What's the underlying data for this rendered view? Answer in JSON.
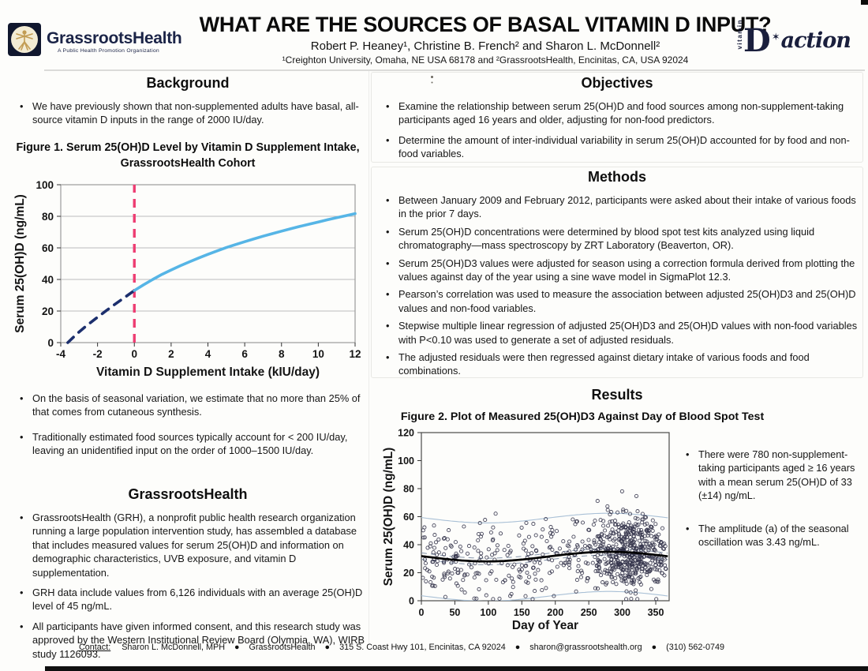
{
  "header": {
    "logo_left": {
      "name": "GrassrootsHealth",
      "tagline": "A Public Health Promotion Organization"
    },
    "title": "WHAT ARE THE SOURCES OF BASAL VITAMIN D INPUT?",
    "authors": "Robert P. Heaney¹, Christine B. French² and Sharon L. McDonnell²",
    "affiliations": "¹Creighton University, Omaha, NE USA 68178 and ²GrassrootsHealth, Encinitas, CA, USA 92024",
    "logo_right": {
      "vertical": "vitamin",
      "d": "D",
      "star": "✶",
      "rest": "action"
    }
  },
  "left_column": {
    "background": {
      "heading": "Background",
      "bullets": [
        "We have previously shown that non-supplemented adults have basal, all-source vitamin D inputs in the range of 2000 IU/day."
      ]
    },
    "post_figure_bullets": [
      "On the basis of seasonal variation, we estimate that no more than 25% of that comes from cutaneous synthesis.",
      "Traditionally estimated food sources typically account for < 200 IU/day, leaving an unidentified input on the order of 1000–1500 IU/day."
    ],
    "grassrootshealth": {
      "heading": "GrassrootsHealth",
      "bullets": [
        "GrassrootsHealth (GRH), a nonprofit public health research organization running a large population intervention study, has assembled a database that includes measured values for serum 25(OH)D and information on demographic characteristics, UVB exposure, and vitamin D supplementation.",
        "GRH data include values from 6,126 individuals with an average 25(OH)D level of 45 ng/mL.",
        "All participants have given informed consent, and this research study was approved by the Western Institutional Review Board (Olympia, WA), WIRB study 1126093."
      ]
    }
  },
  "right_column": {
    "objectives": {
      "heading": "Objectives",
      "bullets": [
        "Examine the relationship between serum 25(OH)D and food sources among non-supplement-taking participants aged 16 years and older, adjusting for non-food predictors.",
        "Determine the amount of inter-individual variability in serum 25(OH)D accounted for by food and non-food variables."
      ]
    },
    "methods": {
      "heading": "Methods",
      "bullets": [
        "Between January 2009 and February 2012, participants were asked about their intake of various foods in the prior 7 days.",
        "Serum 25(OH)D concentrations were determined by blood spot test kits analyzed using liquid chromatography—mass spectroscopy by ZRT Laboratory (Beaverton, OR).",
        "Serum 25(OH)D3 values were adjusted for season using a correction formula derived from plotting the values against day of the year using a sine wave model in SigmaPlot 12.3.",
        "Pearson’s correlation was used to measure the association between adjusted 25(OH)D3 and 25(OH)D values and non-food variables.",
        "Stepwise multiple linear regression of adjusted 25(OH)D3 and 25(OH)D values with non-food variables with P<0.10 was used to generate a set of adjusted residuals.",
        "The adjusted residuals were then regressed against dietary intake of various foods and food combinations."
      ]
    },
    "results": {
      "heading": "Results",
      "bullets": [
        "There were 780 non-supplement-taking participants aged ≥ 16 years with a mean serum 25(OH)D of 33 (±14) ng/mL.",
        "The amplitude (a) of the seasonal oscillation was 3.43 ng/mL."
      ]
    }
  },
  "footer": {
    "label": "Contact:",
    "text": "Sharon L. McDonnell, MPH    ●    GrassrootsHealth    ●    315 S. Coast Hwy 101, Encinitas, CA 92024    ●    sharon@grassrootshealth.org    ●    (310) 562-0749"
  },
  "chart_data": [
    {
      "id": "fig1",
      "type": "line",
      "title": "Figure 1. Serum 25(OH)D Level by Vitamin D Supplement Intake, GrassrootsHealth Cohort",
      "xlabel": "Vitamin D Supplement Intake  (kIU/day)",
      "ylabel": "Serum 25(OH)D (ng/mL)",
      "xlim": [
        -4,
        12
      ],
      "ylim": [
        0,
        100
      ],
      "xticks": [
        -4,
        -2,
        0,
        2,
        4,
        6,
        8,
        10,
        12
      ],
      "yticks": [
        0,
        20,
        40,
        60,
        80,
        100
      ],
      "grid": "horizontal",
      "frame_color": "#9b9b9b",
      "grid_color": "#bcbcbc",
      "series": [
        {
          "name": "extrapolated-basal-input",
          "style": "dashed",
          "color": "#1c2f6d",
          "width": 3.6,
          "points": [
            [
              -3.62,
              0
            ],
            [
              -3.1,
              5.8
            ],
            [
              -2.6,
              10.7
            ],
            [
              -2.1,
              15.2
            ],
            [
              -1.6,
              19.6
            ],
            [
              -1.1,
              23.9
            ],
            [
              -0.55,
              28.4
            ],
            [
              0,
              33
            ]
          ]
        },
        {
          "name": "observed-cohort-curve",
          "style": "solid",
          "color": "#56b5e6",
          "width": 3.6,
          "points": [
            [
              0,
              33
            ],
            [
              0.5,
              36.6
            ],
            [
              1,
              40
            ],
            [
              1.5,
              43.2
            ],
            [
              2,
              46
            ],
            [
              2.5,
              48.7
            ],
            [
              3,
              51.2
            ],
            [
              3.5,
              53.6
            ],
            [
              4,
              55.9
            ],
            [
              4.5,
              58.1
            ],
            [
              5,
              60.2
            ],
            [
              5.5,
              62.1
            ],
            [
              6,
              63.9
            ],
            [
              6.5,
              65.7
            ],
            [
              7,
              67.4
            ],
            [
              7.5,
              69
            ],
            [
              8,
              70.6
            ],
            [
              8.5,
              72.1
            ],
            [
              9,
              73.6
            ],
            [
              9.5,
              75
            ],
            [
              10,
              76.4
            ],
            [
              10.5,
              77.8
            ],
            [
              11,
              79.1
            ],
            [
              11.5,
              80.4
            ],
            [
              12,
              81.7
            ]
          ]
        }
      ],
      "vline": {
        "x": 0,
        "color": "#ee3d72",
        "width": 3.4,
        "dash": "11 8"
      }
    },
    {
      "id": "fig2",
      "type": "scatter",
      "title": "Figure 2. Plot of Measured 25(OH)D3 Against Day of Blood Spot Test",
      "xlabel": "Day of Year",
      "ylabel": "Serum 25(OH)D (ng/mL)",
      "xlim": [
        0,
        370
      ],
      "ylim": [
        0,
        120
      ],
      "xticks": [
        0,
        50,
        100,
        150,
        200,
        250,
        300,
        350
      ],
      "yticks": [
        0,
        20,
        40,
        60,
        80,
        100,
        120
      ],
      "n_participants": 780,
      "mean_25ohd": 33,
      "sd_25ohd": 14,
      "seasonal_amplitude": 3.43,
      "fit": {
        "baseline": 31.5,
        "amplitude": 3.43,
        "peak_day": 280
      },
      "bands": {
        "outer": 27.5,
        "inner": 2.3
      },
      "point_color": "#33334a",
      "curve_color": "#000000",
      "band_outer_color": "#a9c0d6",
      "band_inner_color": "#8494aa",
      "frame_color": "#4a4a4a",
      "sim": {
        "seed": 11,
        "n": 780,
        "noise_sd": 13,
        "cluster_frac": 0.48,
        "cluster_start": 250,
        "cluster_span": 118
      }
    }
  ]
}
